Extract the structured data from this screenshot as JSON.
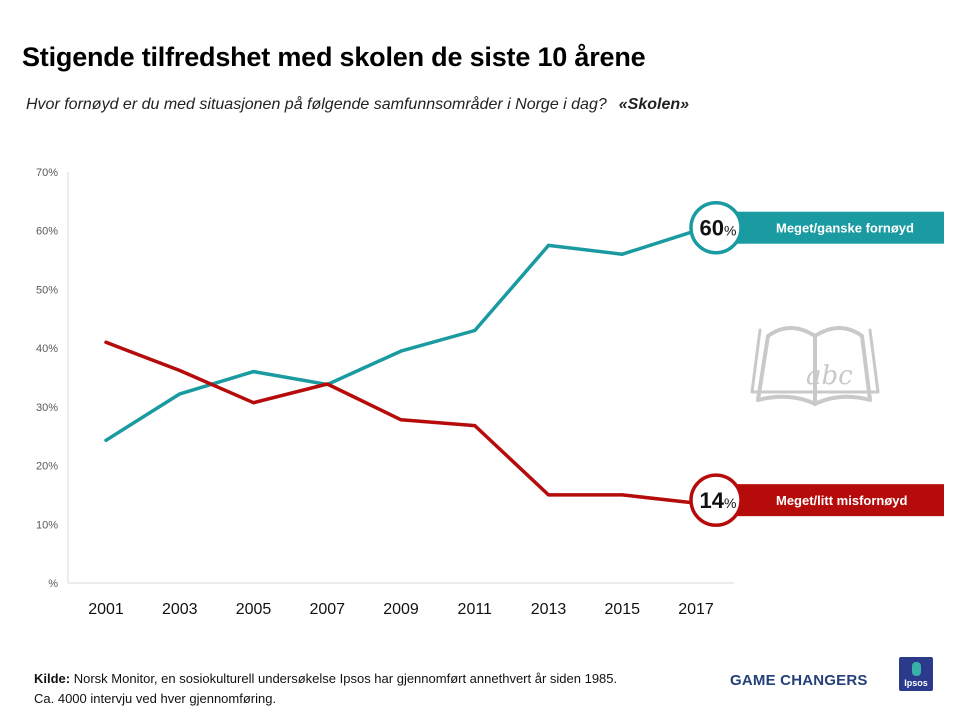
{
  "colors": {
    "satisfied": "#1a9ba1",
    "dissatisfied": "#b60b0b",
    "axis": "#d9d9d9"
  },
  "header": {
    "title": "Stigende tilfredshet med skolen de siste 10 årene",
    "subtitle": "Hvor fornøyd er du med situasjonen på følgende samfunnsområder i Norge i dag?",
    "subtitle_highlight": "«Skolen»"
  },
  "chart_data": {
    "type": "line",
    "title": "Stigende tilfredshet med skolen de siste 10 årene",
    "categories": [
      "2001",
      "2003",
      "2005",
      "2007",
      "2009",
      "2011",
      "2013",
      "2015",
      "2017"
    ],
    "ylim": [
      0,
      70
    ],
    "yticks": [
      0,
      10,
      20,
      30,
      40,
      50,
      60,
      70
    ],
    "ytick_labels": [
      "%",
      "10%",
      "20%",
      "30%",
      "40%",
      "50%",
      "60%",
      "70%"
    ],
    "xlabel": "",
    "ylabel": "",
    "series": [
      {
        "name": "Meget/ganske fornøyd",
        "color": "#1a9ba1",
        "values": [
          24.3,
          32.2,
          36.0,
          33.8,
          39.5,
          43.0,
          57.5,
          56.0,
          60.0
        ],
        "end_value": "60",
        "end_unit": "%"
      },
      {
        "name": "Meget/litt misfornøyd",
        "color": "#b60b0b",
        "values": [
          41.0,
          36.2,
          30.7,
          33.9,
          27.8,
          26.8,
          15.0,
          15.0,
          13.6
        ],
        "end_value": "14",
        "end_unit": "%"
      }
    ]
  },
  "illustration": {
    "icon": "book-abc-icon",
    "text": "abc"
  },
  "footer": {
    "source_label": "Kilde:",
    "source_text": " Norsk Monitor,  en sosiokulturell undersøkelse Ipsos har gjennomført annethvert år siden 1985.",
    "line2": "Ca. 4000 intervju ved hver gjennomføring."
  },
  "brand": {
    "tagline": "GAME CHANGERS",
    "logo_text": "Ipsos"
  }
}
